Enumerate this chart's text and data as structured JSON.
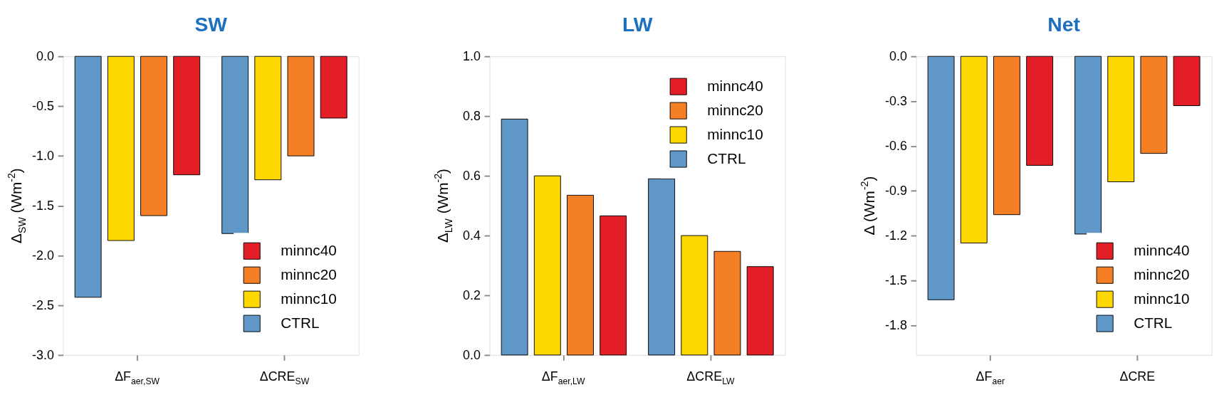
{
  "chart_data": [
    {
      "type": "bar",
      "title": "SW",
      "ylabel": "Δ$_{SW}$ (Wm$^{-2}$)",
      "categories": [
        "ΔF$_{aer,SW}$",
        "ΔCRE$_{SW}$"
      ],
      "series": [
        {
          "name": "CTRL",
          "color": "#5f97c8",
          "values": [
            -2.42,
            -1.78
          ]
        },
        {
          "name": "minnc10",
          "color": "#ffd700",
          "values": [
            -1.85,
            -1.24
          ]
        },
        {
          "name": "minnc20",
          "color": "#f47f24",
          "values": [
            -1.6,
            -1.0
          ]
        },
        {
          "name": "minnc40",
          "color": "#e31e26",
          "values": [
            -1.19,
            -0.62
          ]
        }
      ],
      "ylim": [
        -3.0,
        0.0
      ],
      "yticks": [
        {
          "value": -3.0,
          "label": "-3.0"
        },
        {
          "value": -2.5,
          "label": "-2.5"
        },
        {
          "value": -2.0,
          "label": "-2.0"
        },
        {
          "value": -1.5,
          "label": "-1.5"
        },
        {
          "value": -1.0,
          "label": "-1.0"
        },
        {
          "value": -0.5,
          "label": "-0.5"
        },
        {
          "value": 0.0,
          "label": "0.0"
        }
      ],
      "legend": "bottom right",
      "grid": false
    },
    {
      "type": "bar",
      "title": "LW",
      "ylabel": "Δ$_{LW}$ (Wm$^{-2}$)",
      "categories": [
        "ΔF$_{aer,LW}$",
        "ΔCRE$_{LW}$"
      ],
      "series": [
        {
          "name": "CTRL",
          "color": "#5f97c8",
          "values": [
            0.79,
            0.59
          ]
        },
        {
          "name": "minnc10",
          "color": "#ffd700",
          "values": [
            0.6,
            0.4
          ]
        },
        {
          "name": "minnc20",
          "color": "#f47f24",
          "values": [
            0.535,
            0.347
          ]
        },
        {
          "name": "minnc40",
          "color": "#e31e26",
          "values": [
            0.466,
            0.296
          ]
        }
      ],
      "ylim": [
        0.0,
        1.0
      ],
      "yticks": [
        {
          "value": 0.0,
          "label": "0.0"
        },
        0.2,
        0.4,
        0.6,
        0.8,
        {
          "value": 1.0,
          "label": "1.0"
        }
      ],
      "legend": "top right",
      "grid": false
    },
    {
      "type": "bar",
      "title": "Net",
      "ylabel": "Δ (Wm$^{-2}$)",
      "categories": [
        "ΔF$_{aer}$",
        "ΔCRE"
      ],
      "series": [
        {
          "name": "CTRL",
          "color": "#5f97c8",
          "values": [
            -1.63,
            -1.19
          ]
        },
        {
          "name": "minnc10",
          "color": "#ffd700",
          "values": [
            -1.25,
            -0.84
          ]
        },
        {
          "name": "minnc20",
          "color": "#f47f24",
          "values": [
            -1.06,
            -0.65
          ]
        },
        {
          "name": "minnc40",
          "color": "#e31e26",
          "values": [
            -0.73,
            -0.33
          ]
        }
      ],
      "ylim": [
        -2.0,
        0.0
      ],
      "yticks": [
        -1.8,
        -1.5,
        -1.2,
        -0.9,
        -0.6,
        -0.3,
        {
          "value": 0.0,
          "label": "0.0"
        }
      ],
      "legend": "bottom right",
      "grid": false
    }
  ]
}
